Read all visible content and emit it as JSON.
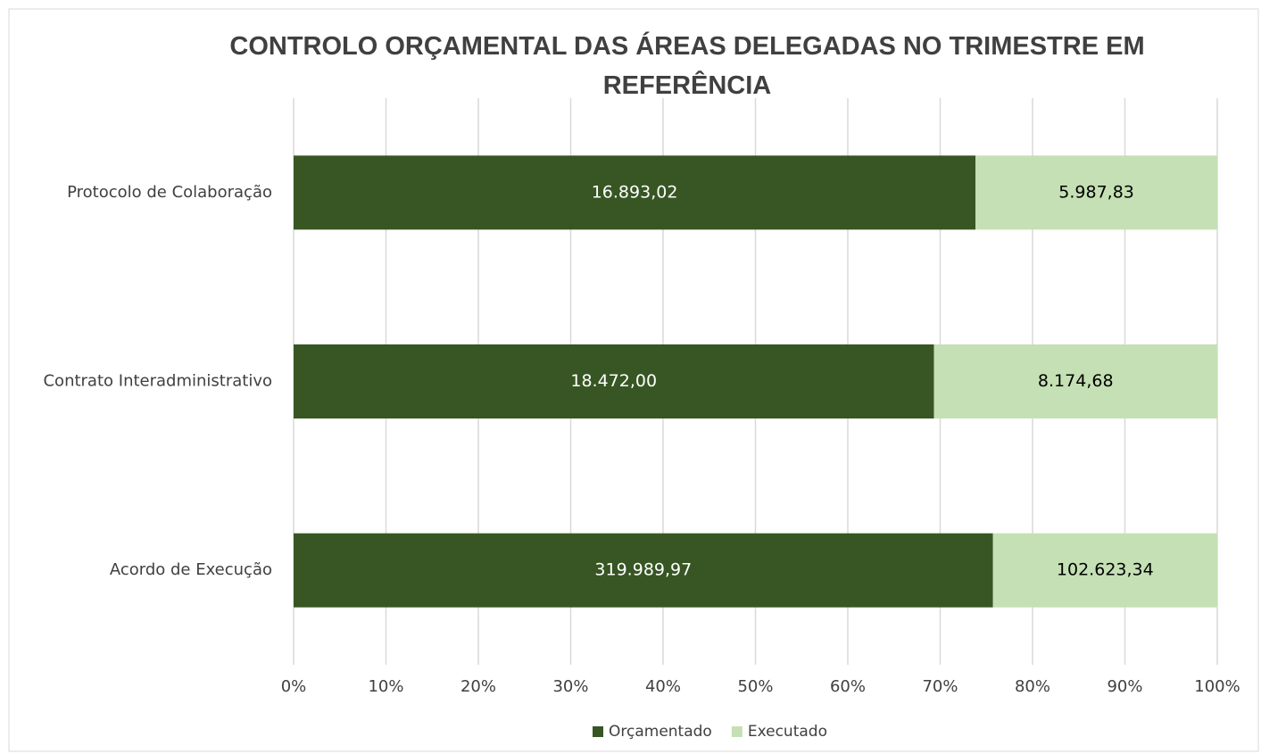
{
  "chart_data": {
    "type": "bar",
    "orientation": "horizontal",
    "stacked": "percent",
    "title": "CONTROLO ORÇAMENTAL DAS ÁREAS DELEGADAS NO TRIMESTRE EM REFERÊNCIA",
    "categories": [
      "Protocolo de Colaboração",
      "Contrato Interadministrativo",
      "Acordo de Execução"
    ],
    "series": [
      {
        "name": "Orçamentado",
        "color": "#375623",
        "values": [
          16893.02,
          18472.0,
          319989.97
        ],
        "value_labels": [
          "16.893,02",
          "18.472,00",
          "319.989,97"
        ]
      },
      {
        "name": "Executado",
        "color": "#c5e0b4",
        "values": [
          5987.83,
          8174.68,
          102623.34
        ],
        "value_labels": [
          "5.987,83",
          "8.174,68",
          "102.623,34"
        ]
      }
    ],
    "xlim": [
      0,
      100
    ],
    "xticks": [
      {
        "value": 0,
        "label": "0%"
      },
      {
        "value": 10,
        "label": "10%"
      },
      {
        "value": 20,
        "label": "20%"
      },
      {
        "value": 30,
        "label": "30%"
      },
      {
        "value": 40,
        "label": "40%"
      },
      {
        "value": 50,
        "label": "50%"
      },
      {
        "value": 60,
        "label": "60%"
      },
      {
        "value": 70,
        "label": "70%"
      },
      {
        "value": 80,
        "label": "80%"
      },
      {
        "value": 90,
        "label": "90%"
      },
      {
        "value": 100,
        "label": "100%"
      }
    ],
    "grid": true,
    "legend": "bottom"
  }
}
